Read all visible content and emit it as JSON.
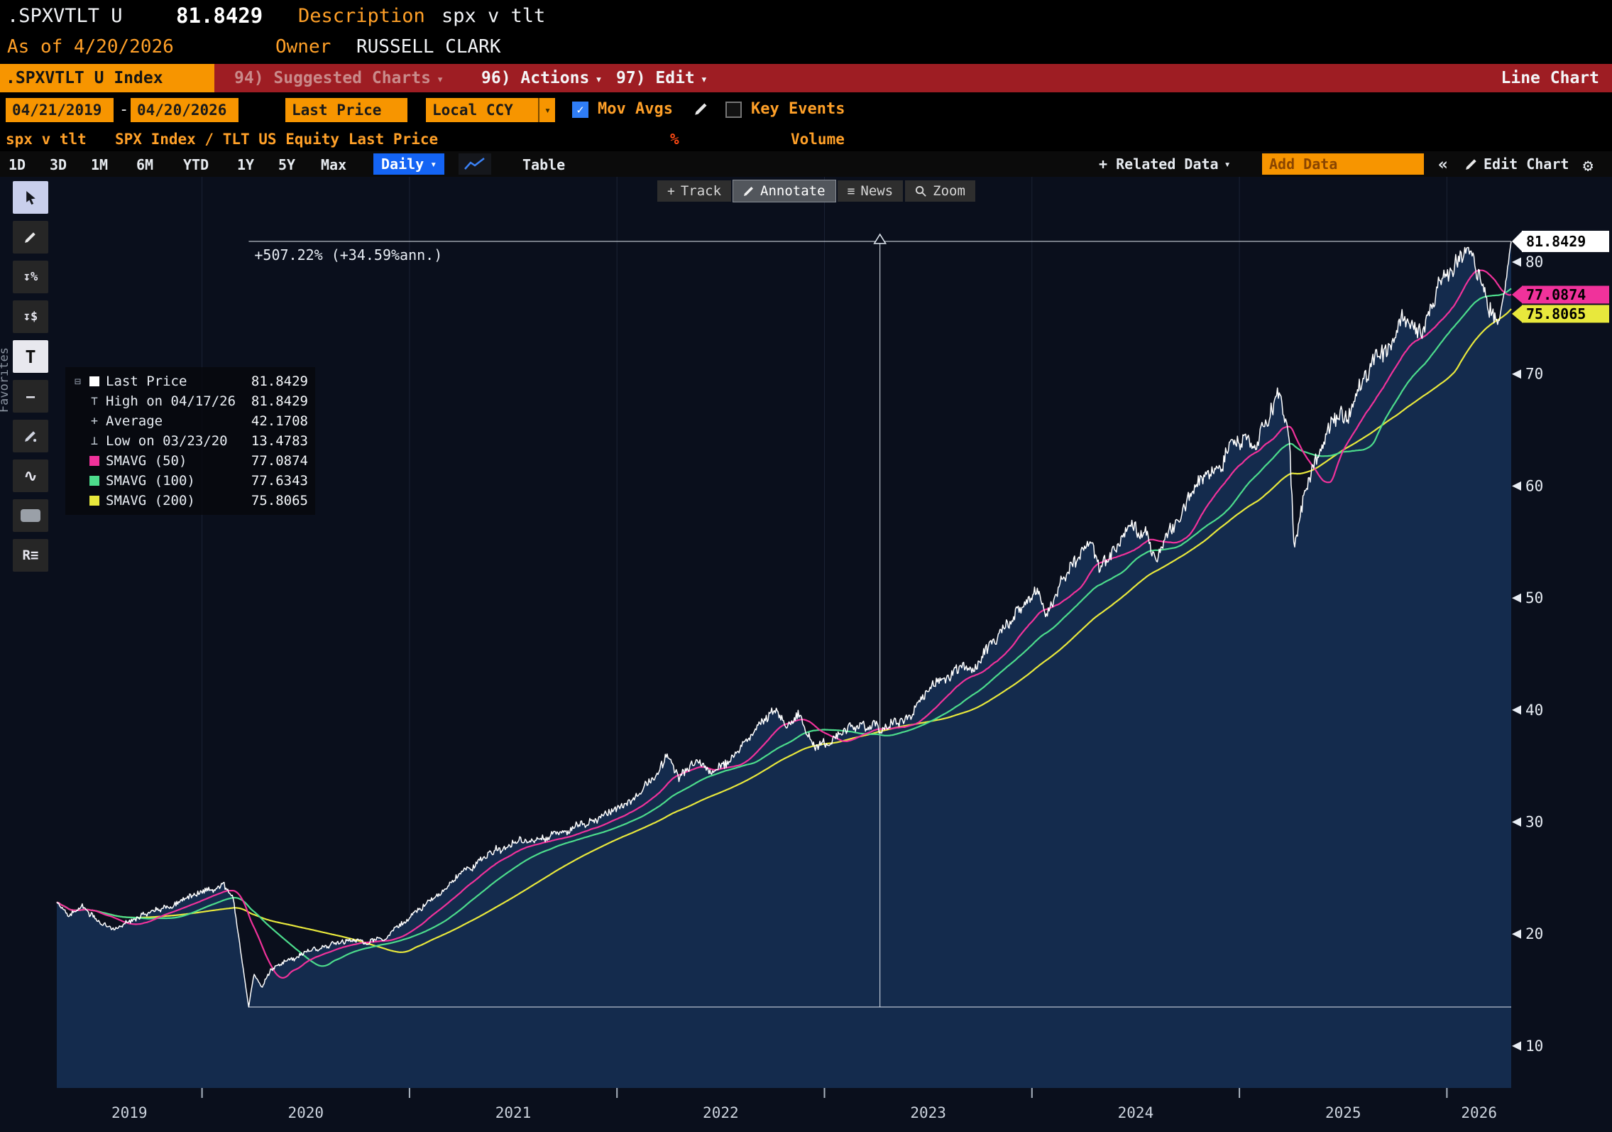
{
  "titlebar": {
    "ticker": ".SPXVTLT U",
    "last_value": "81.8429",
    "description_label": "Description",
    "description_value": "spx v tlt",
    "as_of": "As of 4/20/2026",
    "owner_label": "Owner",
    "owner_value": "RUSSELL CLARK"
  },
  "menubar": {
    "security_tab": ".SPXVTLT U Index",
    "suggested_charts": "94) Suggested Charts",
    "actions": "96) Actions",
    "edit": "97) Edit",
    "chart_type": "Line Chart"
  },
  "toolbar": {
    "date_from": "04/21/2019",
    "date_separator": "-",
    "date_to": "04/20/2026",
    "price_field": "Last Price",
    "currency": "Local CCY",
    "mov_avgs_label": "Mov Avgs",
    "mov_avgs_checked": true,
    "key_events_label": "Key Events",
    "key_events_checked": false
  },
  "security_row": {
    "name": "spx v tlt",
    "formula": "SPX Index / TLT US Equity Last Price",
    "percent_flag": "%",
    "volume_label": "Volume"
  },
  "period_bar": {
    "periods": [
      "1D",
      "3D",
      "1M",
      "6M",
      "YTD",
      "1Y",
      "5Y",
      "Max"
    ],
    "frequency": "Daily",
    "table_label": "Table",
    "related_data": "+ Related Data",
    "add_data_placeholder": "Add Data",
    "collapse": "«",
    "edit_chart": "Edit Chart"
  },
  "chart_tools": {
    "track": "Track",
    "annotate": "Annotate",
    "news": "News",
    "zoom": "Zoom"
  },
  "side_panel": {
    "favorites": "Favorites"
  },
  "legend": {
    "items": [
      {
        "label": "Last Price",
        "value": "81.8429",
        "marker": "white-square"
      },
      {
        "label": "High on 04/17/26",
        "value": "81.8429",
        "marker": "high"
      },
      {
        "label": "Average",
        "value": "42.1708",
        "marker": "average"
      },
      {
        "label": "Low on 03/23/20",
        "value": "13.4783",
        "marker": "low"
      },
      {
        "label": "SMAVG (50)",
        "value": "77.0874",
        "marker": "magenta-square"
      },
      {
        "label": "SMAVG (100)",
        "value": "77.6343",
        "marker": "green-square"
      },
      {
        "label": "SMAVG (200)",
        "value": "75.8065",
        "marker": "yellow-square"
      }
    ]
  },
  "icons": {
    "dropdown": "▾",
    "check": "✓",
    "gear-icon": "⚙",
    "news-icon": "≡",
    "track-icon": "+",
    "collapse-icon": "«",
    "expander-icon": "⊟",
    "high_marker": "⊤",
    "avg_marker": "+",
    "low_marker": "⊥",
    "tool_pct": "↧%",
    "tool_dollar": "↧$",
    "tool_text": "T",
    "tool_hline": "—",
    "tool_wave": "∿",
    "tool_r": "R≡"
  },
  "colors": {
    "amber": "#f79500",
    "amber_text": "#ffa028",
    "menubar_red": "#9e1d23",
    "blue": "#1464f4",
    "magenta": "#f0329b",
    "green": "#4cdc8c",
    "yellow": "#e8e83c",
    "chart_bg": "#0a0f1c",
    "area_fill": "#142b4d"
  },
  "chart_data": {
    "type": "line",
    "x_range": [
      2019.3,
      2026.31
    ],
    "y_ticks": [
      10,
      20,
      30,
      40,
      50,
      60,
      70,
      80
    ],
    "x_tick_labels": [
      "2019",
      "2020",
      "2021",
      "2022",
      "2023",
      "2024",
      "2025",
      "2026"
    ],
    "annotation": {
      "text": "+507.22% (+34.59%ann.)",
      "from_value": 13.4783,
      "to_value": 81.8429
    },
    "stats": {
      "last": 81.8429,
      "high_date": "04/17/26",
      "high": 81.8429,
      "average": 42.1708,
      "low_date": "03/23/20",
      "low": 13.4783
    },
    "price_tags": [
      {
        "value": 81.8429,
        "bg": "#ffffff",
        "fg": "#000000"
      },
      {
        "value": 77.0874,
        "bg": "#f0329b",
        "fg": "#000000"
      },
      {
        "value": 75.8065,
        "bg": "#e8e83c",
        "fg": "#000000"
      }
    ],
    "series": [
      {
        "name": "Last Price",
        "color": "#ffffff",
        "type": "price",
        "keypoints": [
          [
            2019.3,
            22.8
          ],
          [
            2019.36,
            21.7
          ],
          [
            2019.42,
            22.5
          ],
          [
            2019.5,
            21.2
          ],
          [
            2019.58,
            20.6
          ],
          [
            2019.64,
            21.2
          ],
          [
            2019.72,
            22.0
          ],
          [
            2019.8,
            22.6
          ],
          [
            2019.88,
            22.9
          ],
          [
            2019.96,
            23.4
          ],
          [
            2020.04,
            23.8
          ],
          [
            2020.1,
            24.4
          ],
          [
            2020.15,
            23.2
          ],
          [
            2020.19,
            18.0
          ],
          [
            2020.225,
            13.4783
          ],
          [
            2020.25,
            16.4
          ],
          [
            2020.29,
            15.2
          ],
          [
            2020.33,
            16.8
          ],
          [
            2020.4,
            17.6
          ],
          [
            2020.48,
            18.2
          ],
          [
            2020.56,
            18.7
          ],
          [
            2020.64,
            19.2
          ],
          [
            2020.72,
            19.6
          ],
          [
            2020.8,
            19.3
          ],
          [
            2020.88,
            19.8
          ],
          [
            2020.96,
            20.7
          ],
          [
            2021.04,
            21.7
          ],
          [
            2021.12,
            23.0
          ],
          [
            2021.2,
            24.6
          ],
          [
            2021.28,
            25.9
          ],
          [
            2021.36,
            26.9
          ],
          [
            2021.44,
            27.6
          ],
          [
            2021.52,
            28.5
          ],
          [
            2021.6,
            28.1
          ],
          [
            2021.68,
            28.9
          ],
          [
            2021.76,
            29.5
          ],
          [
            2021.84,
            29.8
          ],
          [
            2021.92,
            30.4
          ],
          [
            2022.0,
            31.3
          ],
          [
            2022.08,
            32.4
          ],
          [
            2022.16,
            33.6
          ],
          [
            2022.24,
            36.0
          ],
          [
            2022.3,
            34.3
          ],
          [
            2022.38,
            35.7
          ],
          [
            2022.46,
            34.3
          ],
          [
            2022.54,
            35.5
          ],
          [
            2022.62,
            37.2
          ],
          [
            2022.7,
            39.3
          ],
          [
            2022.76,
            40.3
          ],
          [
            2022.82,
            38.2
          ],
          [
            2022.88,
            39.1
          ],
          [
            2022.95,
            36.6
          ],
          [
            2023.02,
            37.1
          ],
          [
            2023.1,
            38.2
          ],
          [
            2023.18,
            38.6
          ],
          [
            2023.26,
            38.1
          ],
          [
            2023.34,
            39.2
          ],
          [
            2023.42,
            40.4
          ],
          [
            2023.5,
            41.8
          ],
          [
            2023.58,
            43.2
          ],
          [
            2023.66,
            44.5
          ],
          [
            2023.72,
            43.4
          ],
          [
            2023.8,
            45.8
          ],
          [
            2023.88,
            47.4
          ],
          [
            2023.96,
            49.0
          ],
          [
            2024.02,
            49.8
          ],
          [
            2024.07,
            48.3
          ],
          [
            2024.14,
            51.2
          ],
          [
            2024.22,
            52.8
          ],
          [
            2024.28,
            54.0
          ],
          [
            2024.33,
            52.3
          ],
          [
            2024.4,
            55.0
          ],
          [
            2024.48,
            56.6
          ],
          [
            2024.55,
            55.2
          ],
          [
            2024.6,
            52.4
          ],
          [
            2024.66,
            56.2
          ],
          [
            2024.74,
            58.4
          ],
          [
            2024.82,
            60.0
          ],
          [
            2024.9,
            62.0
          ],
          [
            2024.97,
            63.8
          ],
          [
            2025.03,
            64.6
          ],
          [
            2025.08,
            63.2
          ],
          [
            2025.14,
            66.2
          ],
          [
            2025.2,
            67.6
          ],
          [
            2025.24,
            64.5
          ],
          [
            2025.265,
            54.5
          ],
          [
            2025.3,
            58.5
          ],
          [
            2025.36,
            61.8
          ],
          [
            2025.44,
            64.8
          ],
          [
            2025.52,
            66.2
          ],
          [
            2025.6,
            69.0
          ],
          [
            2025.68,
            72.0
          ],
          [
            2025.76,
            73.6
          ],
          [
            2025.82,
            74.6
          ],
          [
            2025.88,
            73.4
          ],
          [
            2025.94,
            76.6
          ],
          [
            2026.0,
            78.2
          ],
          [
            2026.06,
            79.6
          ],
          [
            2026.11,
            80.6
          ],
          [
            2026.16,
            78.6
          ],
          [
            2026.21,
            76.4
          ],
          [
            2026.25,
            74.9
          ],
          [
            2026.28,
            77.5
          ],
          [
            2026.31,
            81.8429
          ]
        ]
      },
      {
        "name": "SMAVG (50)",
        "color": "#f0329b",
        "type": "sma",
        "window": 50,
        "last": 77.0874
      },
      {
        "name": "SMAVG (100)",
        "color": "#4cdc8c",
        "type": "sma",
        "window": 100,
        "last": 77.6343
      },
      {
        "name": "SMAVG (200)",
        "color": "#e8e83c",
        "type": "sma",
        "window": 200,
        "last": 75.8065
      }
    ]
  }
}
